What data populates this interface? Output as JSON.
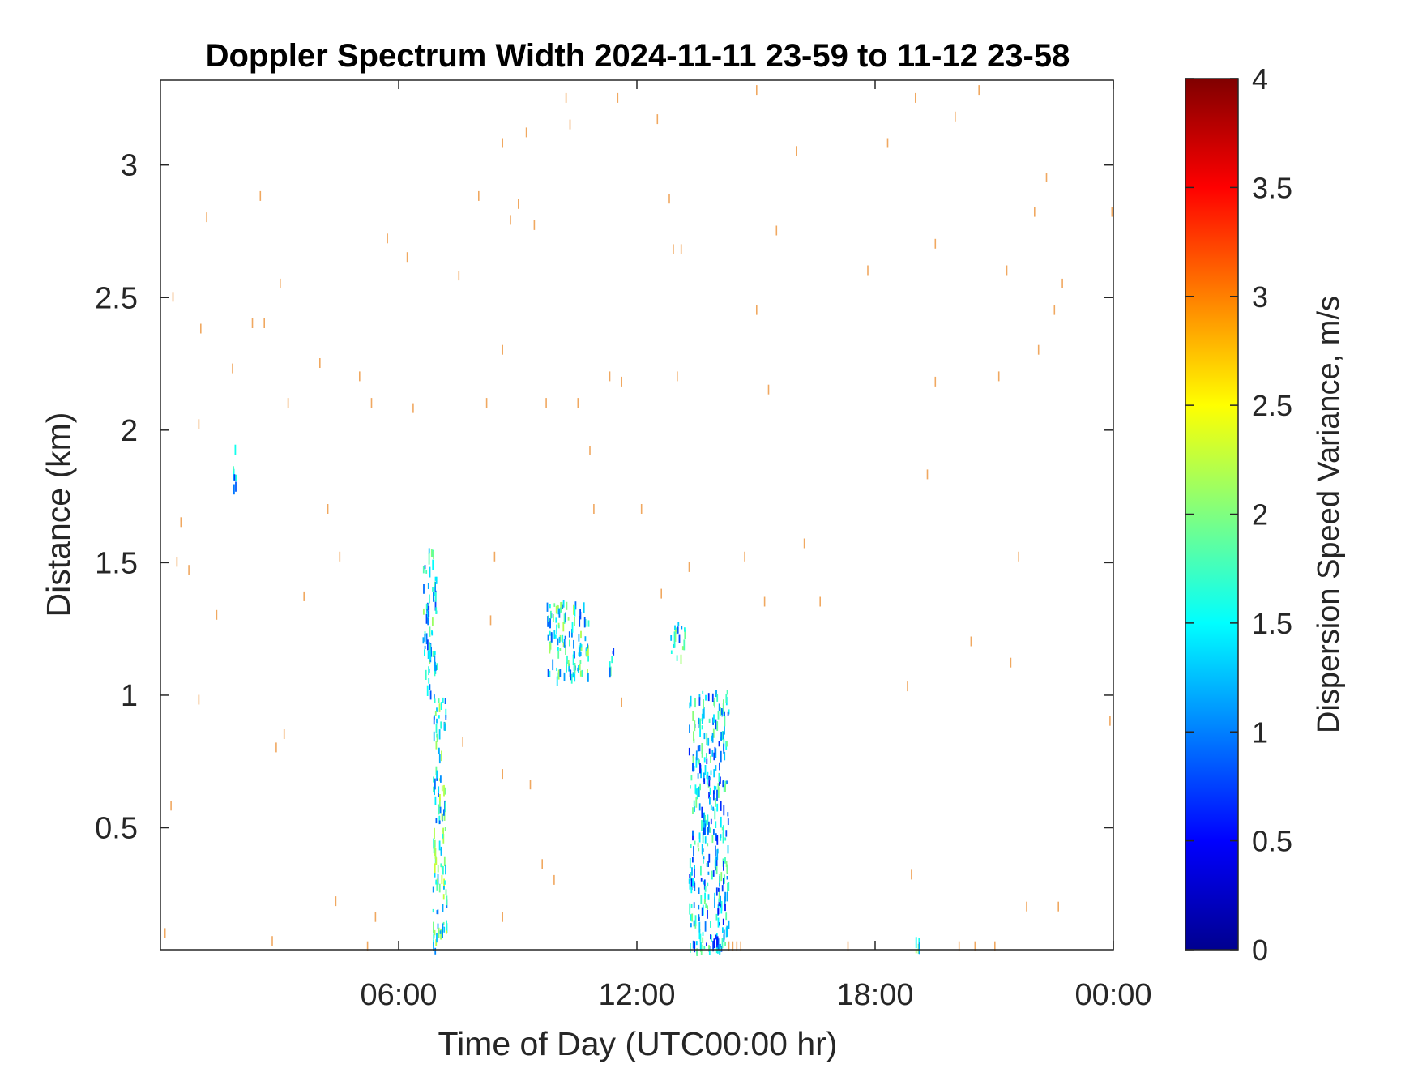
{
  "chart_data": {
    "type": "heatmap",
    "title": "Doppler Spectrum Width 2024-11-11 23-59 to 11-12 23-58",
    "xlabel": "Time of Day (UTC00:00 hr)",
    "ylabel": "Distance (km)",
    "xlim": [
      0,
      24
    ],
    "ylim": [
      0.04,
      3.32
    ],
    "x_ticks": [
      {
        "value": 6,
        "label": "06:00"
      },
      {
        "value": 12,
        "label": "12:00"
      },
      {
        "value": 18,
        "label": "18:00"
      },
      {
        "value": 24,
        "label": "00:00"
      }
    ],
    "y_ticks": [
      {
        "value": 0.5,
        "label": "0.5"
      },
      {
        "value": 1,
        "label": "1"
      },
      {
        "value": 1.5,
        "label": "1.5"
      },
      {
        "value": 2,
        "label": "2"
      },
      {
        "value": 2.5,
        "label": "2.5"
      },
      {
        "value": 3,
        "label": "3"
      }
    ],
    "grid": false,
    "colorbar": {
      "label": "Dispersion Speed Variance, m/s",
      "colormap": "jet",
      "range": [
        0,
        4
      ],
      "ticks": [
        {
          "value": 0,
          "label": "0"
        },
        {
          "value": 0.5,
          "label": "0.5"
        },
        {
          "value": 1,
          "label": "1"
        },
        {
          "value": 1.5,
          "label": "1.5"
        },
        {
          "value": 2,
          "label": "2"
        },
        {
          "value": 2.5,
          "label": "2.5"
        },
        {
          "value": 3,
          "label": "3"
        },
        {
          "value": 3.5,
          "label": "3.5"
        },
        {
          "value": 4,
          "label": "4"
        }
      ]
    },
    "clusters": [
      {
        "t_start": 1.8,
        "t_end": 1.9,
        "d_start": 1.78,
        "d_end": 1.98,
        "value": 1.3
      },
      {
        "t_start": 6.6,
        "t_end": 6.95,
        "d_start": 1.0,
        "d_end": 1.56,
        "value": 1.4
      },
      {
        "t_start": 6.85,
        "t_end": 7.2,
        "d_start": 0.04,
        "d_end": 1.0,
        "value": 1.6
      },
      {
        "t_start": 9.7,
        "t_end": 10.8,
        "d_start": 1.07,
        "d_end": 1.36,
        "value": 1.5
      },
      {
        "t_start": 11.3,
        "t_end": 11.4,
        "d_start": 1.1,
        "d_end": 1.18,
        "value": 1.4
      },
      {
        "t_start": 12.8,
        "t_end": 13.2,
        "d_start": 1.15,
        "d_end": 1.28,
        "value": 1.4
      },
      {
        "t_start": 13.3,
        "t_end": 14.3,
        "d_start": 0.04,
        "d_end": 1.02,
        "value": 1.3
      },
      {
        "t_start": 19.0,
        "t_end": 19.1,
        "d_start": 0.04,
        "d_end": 0.1,
        "value": 1.5
      }
    ],
    "sparse_returns": [
      {
        "t": 0.1,
        "d": 0.1
      },
      {
        "t": 0.25,
        "d": 0.58
      },
      {
        "t": 0.3,
        "d": 2.5
      },
      {
        "t": 0.4,
        "d": 1.5
      },
      {
        "t": 0.5,
        "d": 1.65
      },
      {
        "t": 0.7,
        "d": 1.47
      },
      {
        "t": 0.95,
        "d": 2.02
      },
      {
        "t": 0.95,
        "d": 0.98
      },
      {
        "t": 1.0,
        "d": 2.38
      },
      {
        "t": 1.15,
        "d": 2.8
      },
      {
        "t": 1.4,
        "d": 1.3
      },
      {
        "t": 1.8,
        "d": 2.23
      },
      {
        "t": 2.3,
        "d": 2.4
      },
      {
        "t": 2.5,
        "d": 2.88
      },
      {
        "t": 2.6,
        "d": 2.4
      },
      {
        "t": 2.8,
        "d": 0.07
      },
      {
        "t": 2.9,
        "d": 0.8
      },
      {
        "t": 3.0,
        "d": 2.55
      },
      {
        "t": 3.1,
        "d": 0.85
      },
      {
        "t": 3.2,
        "d": 2.1
      },
      {
        "t": 3.6,
        "d": 1.37
      },
      {
        "t": 4.0,
        "d": 2.25
      },
      {
        "t": 4.2,
        "d": 1.7
      },
      {
        "t": 4.4,
        "d": 0.22
      },
      {
        "t": 4.5,
        "d": 1.52
      },
      {
        "t": 5.0,
        "d": 2.2
      },
      {
        "t": 5.2,
        "d": 0.05
      },
      {
        "t": 5.3,
        "d": 2.1
      },
      {
        "t": 5.4,
        "d": 0.16
      },
      {
        "t": 5.7,
        "d": 2.72
      },
      {
        "t": 6.2,
        "d": 2.65
      },
      {
        "t": 6.35,
        "d": 2.08
      },
      {
        "t": 7.5,
        "d": 2.58
      },
      {
        "t": 7.6,
        "d": 0.82
      },
      {
        "t": 8.0,
        "d": 2.88
      },
      {
        "t": 8.2,
        "d": 2.1
      },
      {
        "t": 8.3,
        "d": 1.28
      },
      {
        "t": 8.4,
        "d": 1.52
      },
      {
        "t": 8.6,
        "d": 3.08
      },
      {
        "t": 8.6,
        "d": 2.3
      },
      {
        "t": 8.6,
        "d": 0.7
      },
      {
        "t": 8.6,
        "d": 0.16
      },
      {
        "t": 8.8,
        "d": 2.79
      },
      {
        "t": 9.0,
        "d": 2.85
      },
      {
        "t": 9.2,
        "d": 3.12
      },
      {
        "t": 9.3,
        "d": 0.66
      },
      {
        "t": 9.4,
        "d": 2.77
      },
      {
        "t": 9.6,
        "d": 0.36
      },
      {
        "t": 9.7,
        "d": 2.1
      },
      {
        "t": 9.9,
        "d": 0.3
      },
      {
        "t": 10.2,
        "d": 3.25
      },
      {
        "t": 10.3,
        "d": 3.15
      },
      {
        "t": 10.5,
        "d": 2.1
      },
      {
        "t": 10.8,
        "d": 1.92
      },
      {
        "t": 10.9,
        "d": 1.7
      },
      {
        "t": 11.3,
        "d": 2.2
      },
      {
        "t": 11.5,
        "d": 3.25
      },
      {
        "t": 11.6,
        "d": 2.18
      },
      {
        "t": 11.6,
        "d": 0.97
      },
      {
        "t": 12.1,
        "d": 1.7
      },
      {
        "t": 12.5,
        "d": 3.17
      },
      {
        "t": 12.6,
        "d": 1.38
      },
      {
        "t": 12.8,
        "d": 2.87
      },
      {
        "t": 12.9,
        "d": 2.68
      },
      {
        "t": 13.0,
        "d": 2.2
      },
      {
        "t": 13.1,
        "d": 2.68
      },
      {
        "t": 13.3,
        "d": 1.48
      },
      {
        "t": 14.0,
        "d": 0.05
      },
      {
        "t": 14.3,
        "d": 0.05
      },
      {
        "t": 14.4,
        "d": 0.05
      },
      {
        "t": 14.5,
        "d": 0.05
      },
      {
        "t": 14.6,
        "d": 0.05
      },
      {
        "t": 14.7,
        "d": 1.52
      },
      {
        "t": 15.0,
        "d": 3.28
      },
      {
        "t": 15.0,
        "d": 2.45
      },
      {
        "t": 15.2,
        "d": 1.35
      },
      {
        "t": 15.3,
        "d": 2.15
      },
      {
        "t": 15.5,
        "d": 2.75
      },
      {
        "t": 16.0,
        "d": 3.05
      },
      {
        "t": 16.2,
        "d": 1.57
      },
      {
        "t": 16.6,
        "d": 1.35
      },
      {
        "t": 17.3,
        "d": 0.05
      },
      {
        "t": 17.8,
        "d": 2.6
      },
      {
        "t": 18.3,
        "d": 3.08
      },
      {
        "t": 18.8,
        "d": 1.03
      },
      {
        "t": 18.9,
        "d": 0.32
      },
      {
        "t": 19.0,
        "d": 3.25
      },
      {
        "t": 19.3,
        "d": 1.83
      },
      {
        "t": 19.5,
        "d": 2.7
      },
      {
        "t": 19.5,
        "d": 2.18
      },
      {
        "t": 20.0,
        "d": 3.18
      },
      {
        "t": 20.1,
        "d": 0.05
      },
      {
        "t": 20.4,
        "d": 1.2
      },
      {
        "t": 20.5,
        "d": 0.05
      },
      {
        "t": 20.6,
        "d": 3.28
      },
      {
        "t": 21.0,
        "d": 0.05
      },
      {
        "t": 21.1,
        "d": 2.2
      },
      {
        "t": 21.3,
        "d": 2.6
      },
      {
        "t": 21.4,
        "d": 1.12
      },
      {
        "t": 21.6,
        "d": 1.52
      },
      {
        "t": 21.8,
        "d": 0.2
      },
      {
        "t": 22.0,
        "d": 2.82
      },
      {
        "t": 22.1,
        "d": 2.3
      },
      {
        "t": 22.3,
        "d": 2.95
      },
      {
        "t": 22.5,
        "d": 2.45
      },
      {
        "t": 22.6,
        "d": 0.2
      },
      {
        "t": 22.7,
        "d": 2.55
      },
      {
        "t": 23.9,
        "d": 0.9
      },
      {
        "t": 23.95,
        "d": 2.82
      }
    ]
  }
}
